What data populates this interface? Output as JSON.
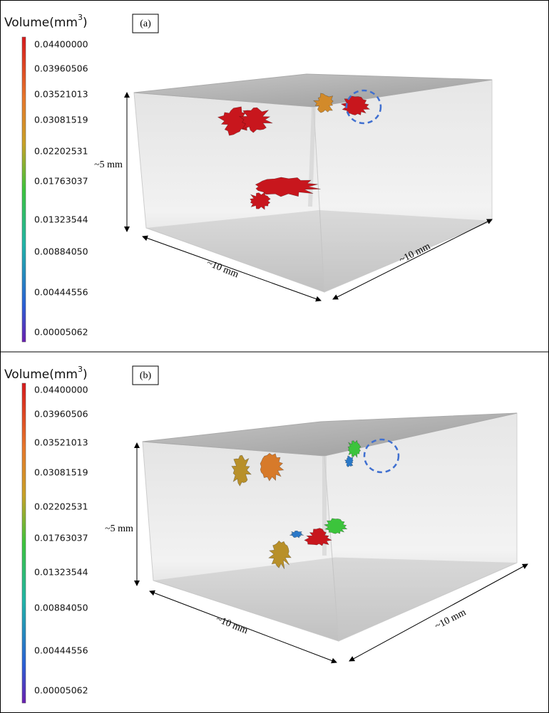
{
  "panels": [
    {
      "label": "(a)",
      "colorbar": {
        "title": "Volume(mm",
        "title_sup": "3",
        "title_end": ")",
        "ticks": [
          "0.04400000",
          "0.03960506",
          "0.03521013",
          "0.03081519",
          "0.02202531",
          "0.01763037",
          "0.01323544",
          "0.00884050",
          "0.00444556",
          "0.00005062"
        ]
      },
      "dimensions": {
        "height": "~5 mm",
        "length": "~10 mm",
        "width": "~10 mm"
      }
    },
    {
      "label": "(b)",
      "colorbar": {
        "title": "Volume(mm",
        "title_sup": "3",
        "title_end": ")",
        "ticks": [
          "0.04400000",
          "0.03960506",
          "0.03521013",
          "0.03081519",
          "0.02202531",
          "0.01763037",
          "0.01323544",
          "0.00884050",
          "0.00444556",
          "0.00005062"
        ]
      },
      "dimensions": {
        "height": "~5 mm",
        "length": "~10 mm",
        "width": "~10 mm"
      }
    }
  ]
}
